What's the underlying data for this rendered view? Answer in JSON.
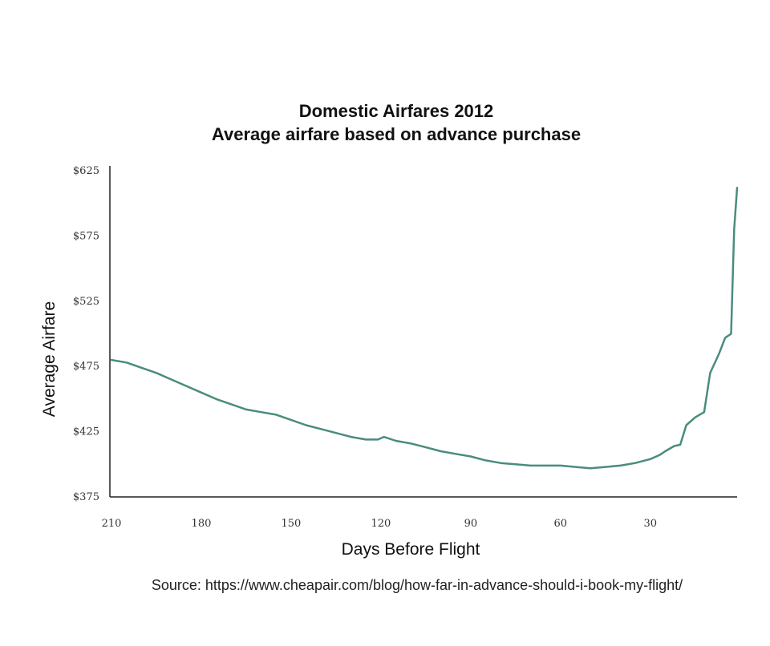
{
  "chart_data": {
    "type": "line",
    "title": "Domestic Airfares 2012",
    "subtitle": "Average airfare based on advance purchase",
    "xlabel": "Days Before Flight",
    "ylabel": "Average Airfare",
    "xlim": [
      210,
      1
    ],
    "ylim": [
      375,
      625
    ],
    "x_reversed": true,
    "x_ticks": [
      "210",
      "180",
      "150",
      "120",
      "90",
      "60",
      "30"
    ],
    "y_ticks": [
      "$375",
      "$425",
      "$475",
      "$525",
      "$575",
      "$625"
    ],
    "grid": false,
    "legend": "none",
    "line_color": "#4a8c7e",
    "series": [
      {
        "x": [
          210,
          205,
          200,
          195,
          190,
          185,
          180,
          175,
          170,
          165,
          160,
          155,
          150,
          145,
          140,
          135,
          130,
          125,
          121,
          119,
          115,
          110,
          105,
          100,
          95,
          90,
          85,
          80,
          75,
          70,
          65,
          60,
          55,
          50,
          45,
          40,
          35,
          30,
          27,
          25,
          22,
          20,
          18,
          15,
          12,
          10,
          8,
          7,
          5,
          3,
          2,
          1
        ],
        "y": [
          480,
          478,
          474,
          470,
          465,
          460,
          455,
          450,
          446,
          442,
          440,
          438,
          434,
          430,
          427,
          424,
          421,
          419,
          419,
          421,
          418,
          416,
          413,
          410,
          408,
          406,
          403,
          401,
          400,
          399,
          399,
          399,
          398,
          397,
          398,
          399,
          401,
          404,
          407,
          410,
          414,
          415,
          430,
          436,
          440,
          470,
          480,
          485,
          497,
          500,
          580,
          612
        ]
      }
    ],
    "source": "Source: https://www.cheapair.com/blog/how-far-in-advance-should-i-book-my-flight/"
  }
}
